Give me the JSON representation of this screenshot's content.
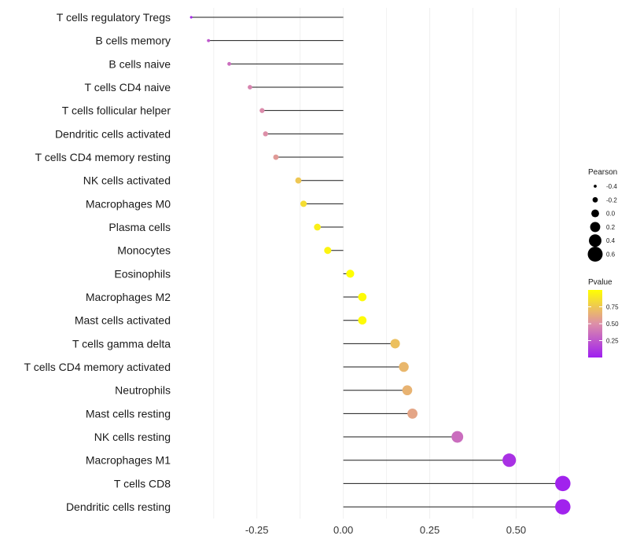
{
  "chart_data": {
    "type": "lollipop",
    "orientation": "horizontal",
    "categories": [
      "T cells regulatory  Tregs",
      "B cells memory",
      "B cells naive",
      "T cells CD4 naive",
      "T cells follicular helper",
      "Dendritic cells activated",
      "T cells CD4 memory resting",
      "NK cells activated",
      "Macrophages M0",
      "Plasma cells",
      "Monocytes",
      "Eosinophils",
      "Macrophages M2",
      "Mast cells activated",
      "T cells gamma delta",
      "T cells CD4 memory activated",
      "Neutrophils",
      "Mast cells resting",
      "NK cells resting",
      "Macrophages M1",
      "T cells CD8",
      "Dendritic cells resting"
    ],
    "pearson": [
      -0.44,
      -0.39,
      -0.33,
      -0.27,
      -0.235,
      -0.225,
      -0.195,
      -0.13,
      -0.115,
      -0.075,
      -0.045,
      0.02,
      0.055,
      0.055,
      0.15,
      0.175,
      0.185,
      0.2,
      0.33,
      0.48,
      0.635,
      0.635
    ],
    "pvalue": [
      0.05,
      0.25,
      0.35,
      0.45,
      0.48,
      0.5,
      0.55,
      0.75,
      0.85,
      0.93,
      0.95,
      1.0,
      0.98,
      0.98,
      0.72,
      0.68,
      0.66,
      0.6,
      0.35,
      0.08,
      0.02,
      0.02
    ],
    "xlim": [
      -0.47,
      0.69
    ],
    "xticks": [
      -0.25,
      0.0,
      0.25,
      0.5
    ],
    "xtick_labels": [
      "-0.25",
      "0.00",
      "0.25",
      "0.50"
    ],
    "xlabel": "",
    "ylabel": "",
    "legend": {
      "pearson_title": "Pearson",
      "pearson_values": [
        -0.4,
        -0.2,
        0.0,
        0.2,
        0.4,
        0.6
      ],
      "pearson_labels": [
        "-0.4",
        "-0.2",
        "0.0",
        "0.2",
        "0.4",
        "0.6"
      ],
      "pvalue_title": "Pvalue",
      "pvalue_ticks": [
        0.75,
        0.5,
        0.25
      ],
      "pvalue_labels": [
        "0.75",
        "0.50",
        "0.25"
      ],
      "pvalue_range": [
        0.0,
        1.0
      ],
      "colors": {
        "low": "#9f1ff0",
        "mid": "#dd8fa8",
        "high": "#ffff00"
      }
    }
  }
}
